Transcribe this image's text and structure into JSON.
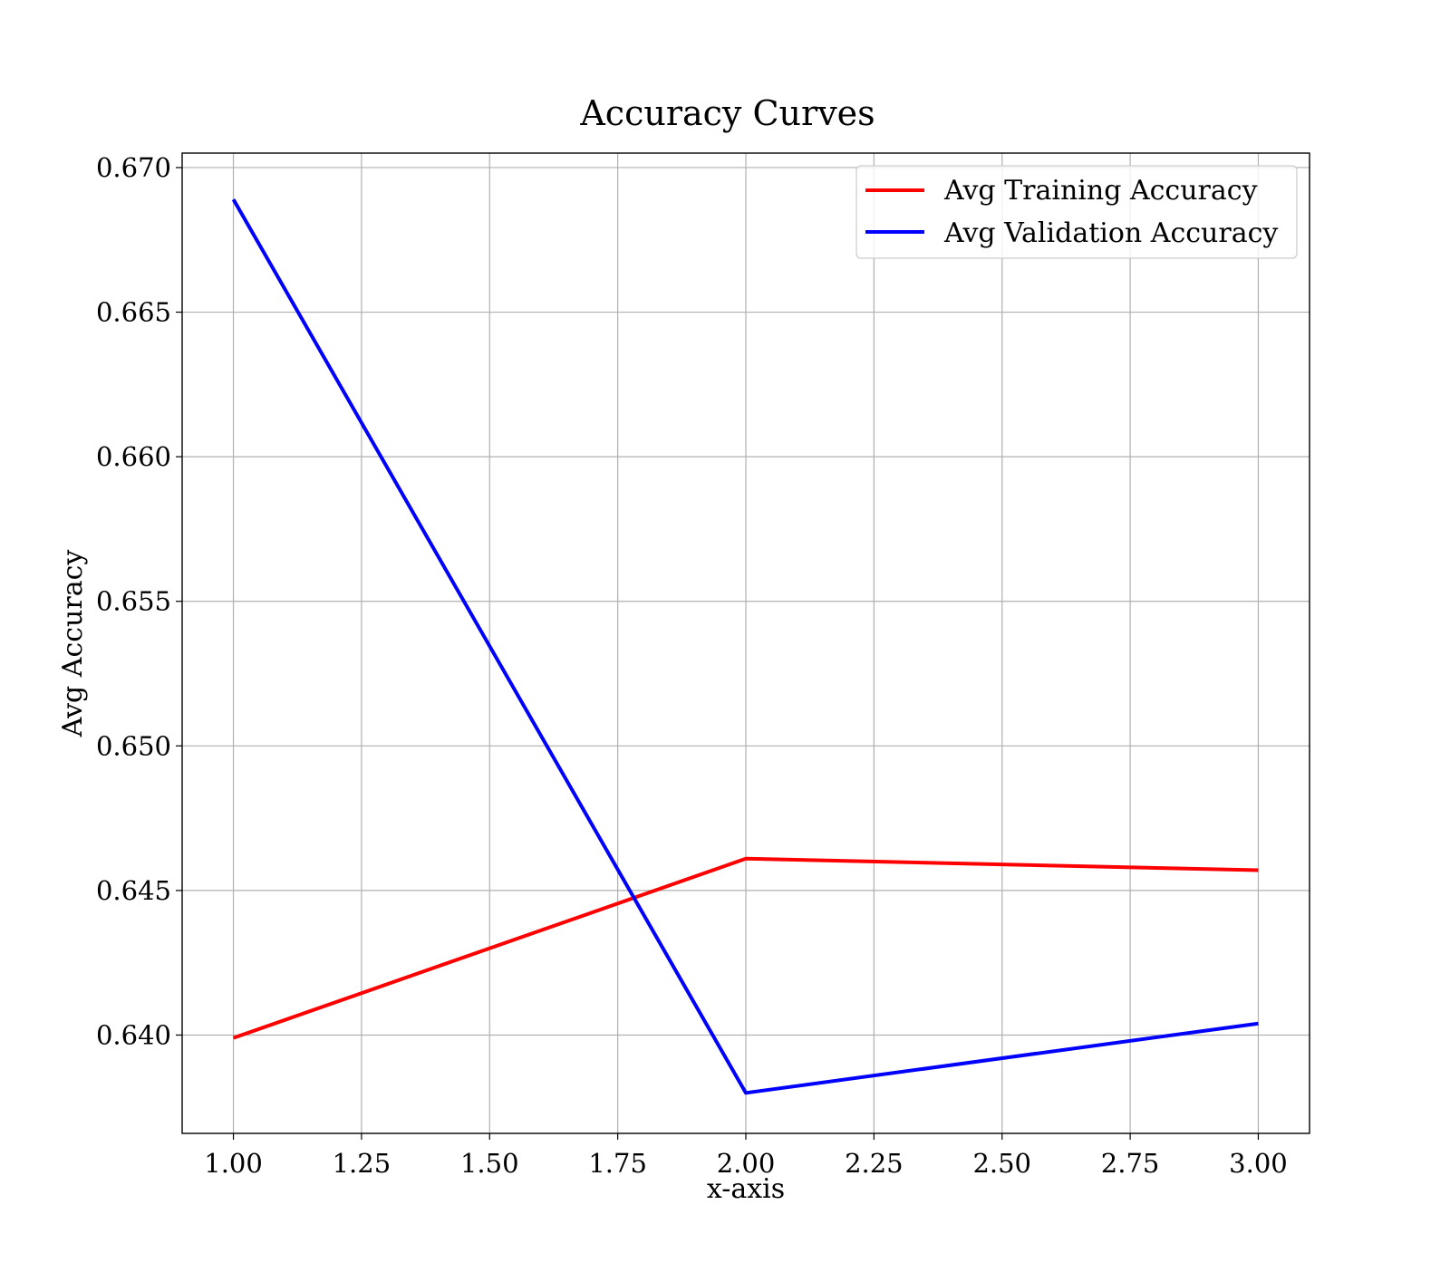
{
  "chart_data": {
    "type": "line",
    "title": "Accuracy Curves",
    "xlabel": "x-axis",
    "ylabel": "Avg Accuracy",
    "x": [
      1.0,
      2.0,
      3.0
    ],
    "xlim": [
      0.9,
      3.1
    ],
    "ylim": [
      0.6366,
      0.6705
    ],
    "x_ticks": [
      1.0,
      1.25,
      1.5,
      1.75,
      2.0,
      2.25,
      2.5,
      2.75,
      3.0
    ],
    "x_tick_labels": [
      "1.00",
      "1.25",
      "1.50",
      "1.75",
      "2.00",
      "2.25",
      "2.50",
      "2.75",
      "3.00"
    ],
    "y_ticks": [
      0.64,
      0.645,
      0.65,
      0.655,
      0.66,
      0.665,
      0.67
    ],
    "y_tick_labels": [
      "0.640",
      "0.645",
      "0.650",
      "0.655",
      "0.660",
      "0.665",
      "0.670"
    ],
    "grid": true,
    "legend_position": "top-right",
    "series": [
      {
        "name": "Avg Training Accuracy",
        "values": [
          0.6399,
          0.6461,
          0.6457
        ],
        "color": "#ff0000"
      },
      {
        "name": "Avg Validation Accuracy",
        "values": [
          0.6689,
          0.638,
          0.6404
        ],
        "color": "#0000ff"
      }
    ]
  }
}
